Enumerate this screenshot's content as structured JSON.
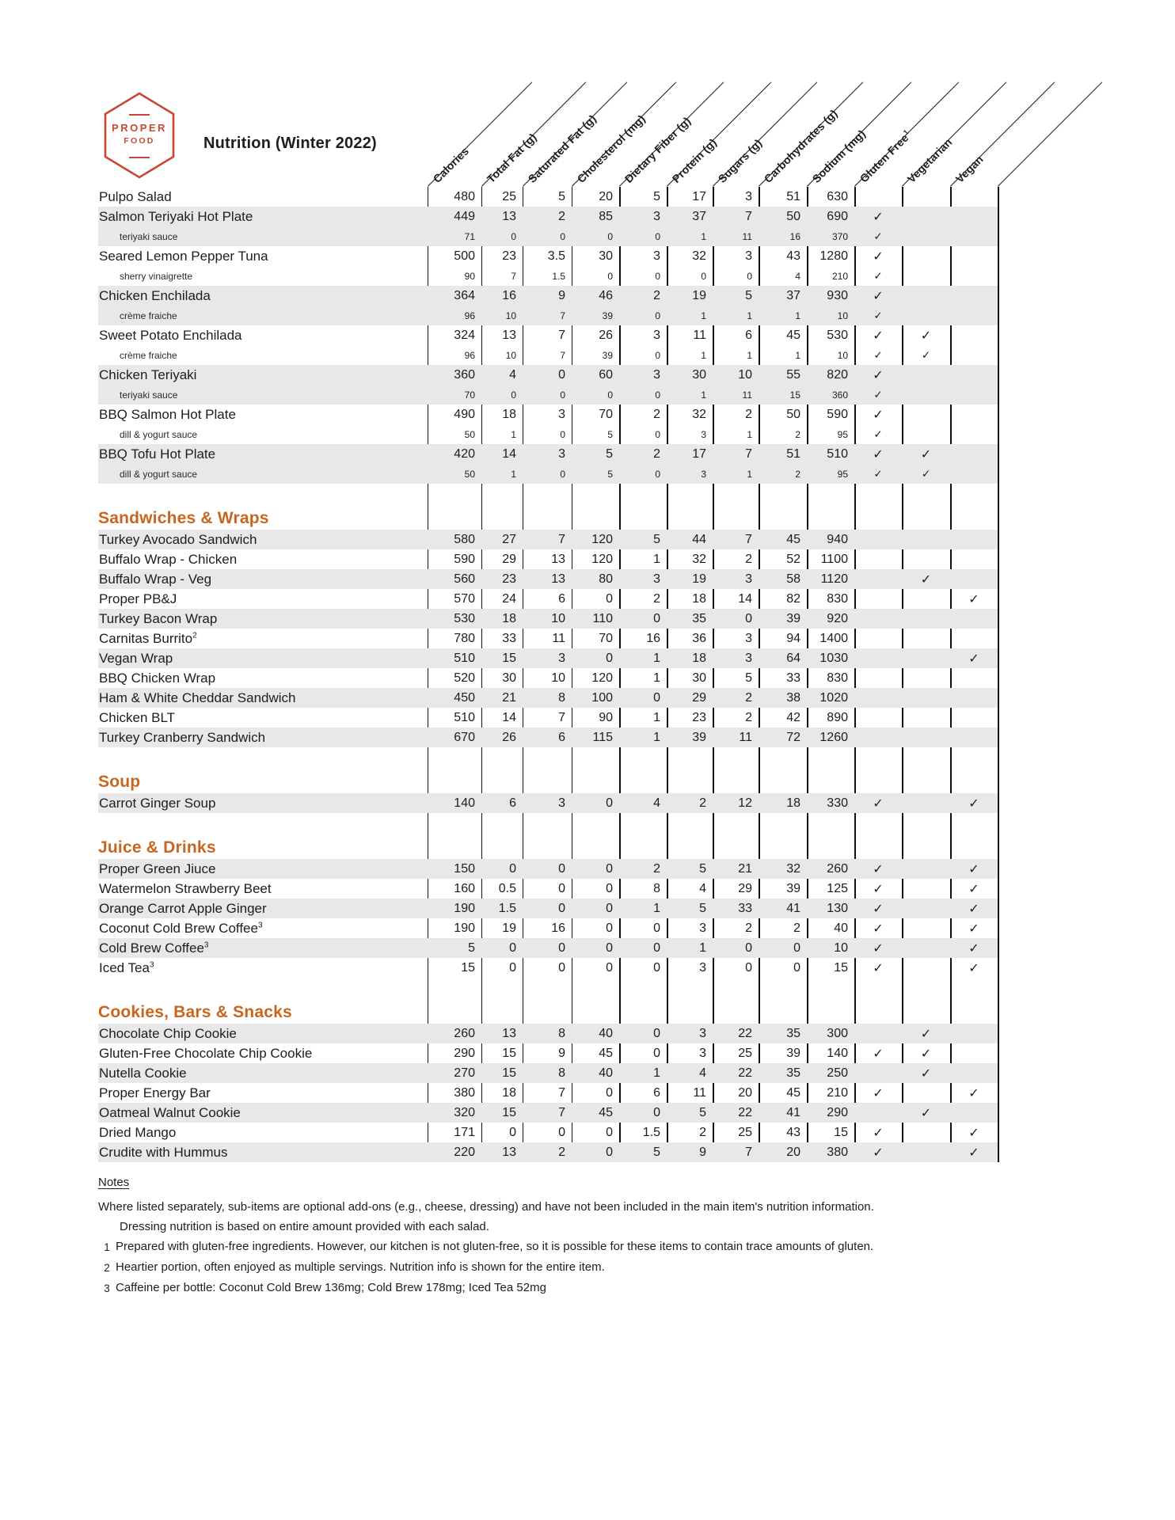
{
  "brand": {
    "logo_top": "PROPER",
    "logo_bottom": "FOOD",
    "title": "Nutrition (Winter 2022)"
  },
  "colors": {
    "accent_orange": "#c8661f",
    "logo_red": "#c54a31",
    "row_shade": "#e8e8e8",
    "line_color": "#111111"
  },
  "check_glyph": "✓",
  "columns": [
    {
      "label": "Calories"
    },
    {
      "label": "Total Fat (g)"
    },
    {
      "label": "Saturated Fat (g)"
    },
    {
      "label": "Cholesterol (mg)"
    },
    {
      "label": "Dietary Fiber (g)"
    },
    {
      "label": "Protein (g)"
    },
    {
      "label": "Sugars (g)"
    },
    {
      "label": "Carbohydrates (g)"
    },
    {
      "label": "Sodium (mg)"
    },
    {
      "label": "Gluten Free",
      "sup": "1"
    },
    {
      "label": "Vegetarian"
    },
    {
      "label": "Vegan"
    }
  ],
  "sections": [
    {
      "title": "",
      "rows": [
        {
          "name": "Pulpo Salad",
          "values": [
            "480",
            "25",
            "5",
            "20",
            "5",
            "17",
            "3",
            "51",
            "630"
          ],
          "checks": [
            0,
            0,
            0
          ],
          "shade": 0
        },
        {
          "name": "Salmon Teriyaki Hot Plate",
          "values": [
            "449",
            "13",
            "2",
            "85",
            "3",
            "37",
            "7",
            "50",
            "690"
          ],
          "checks": [
            1,
            0,
            0
          ],
          "shade": 1
        },
        {
          "name": "teriyaki sauce",
          "sub": true,
          "values": [
            "71",
            "0",
            "0",
            "0",
            "0",
            "1",
            "11",
            "16",
            "370"
          ],
          "checks": [
            1,
            0,
            0
          ],
          "shade": 1
        },
        {
          "name": "Seared Lemon Pepper Tuna",
          "values": [
            "500",
            "23",
            "3.5",
            "30",
            "3",
            "32",
            "3",
            "43",
            "1280"
          ],
          "checks": [
            1,
            0,
            0
          ],
          "shade": 0
        },
        {
          "name": "sherry vinaigrette",
          "sub": true,
          "values": [
            "90",
            "7",
            "1.5",
            "0",
            "0",
            "0",
            "0",
            "4",
            "210"
          ],
          "checks": [
            1,
            0,
            0
          ],
          "shade": 0
        },
        {
          "name": "Chicken Enchilada",
          "values": [
            "364",
            "16",
            "9",
            "46",
            "2",
            "19",
            "5",
            "37",
            "930"
          ],
          "checks": [
            1,
            0,
            0
          ],
          "shade": 1
        },
        {
          "name": "crème fraiche",
          "sub": true,
          "values": [
            "96",
            "10",
            "7",
            "39",
            "0",
            "1",
            "1",
            "1",
            "10"
          ],
          "checks": [
            1,
            0,
            0
          ],
          "shade": 1
        },
        {
          "name": "Sweet Potato Enchilada",
          "values": [
            "324",
            "13",
            "7",
            "26",
            "3",
            "11",
            "6",
            "45",
            "530"
          ],
          "checks": [
            1,
            1,
            0
          ],
          "shade": 0
        },
        {
          "name": "crème fraiche",
          "sub": true,
          "values": [
            "96",
            "10",
            "7",
            "39",
            "0",
            "1",
            "1",
            "1",
            "10"
          ],
          "checks": [
            1,
            1,
            0
          ],
          "shade": 0
        },
        {
          "name": "Chicken Teriyaki",
          "values": [
            "360",
            "4",
            "0",
            "60",
            "3",
            "30",
            "10",
            "55",
            "820"
          ],
          "checks": [
            1,
            0,
            0
          ],
          "shade": 1
        },
        {
          "name": "teriyaki sauce",
          "sub": true,
          "values": [
            "70",
            "0",
            "0",
            "0",
            "0",
            "1",
            "11",
            "15",
            "360"
          ],
          "checks": [
            1,
            0,
            0
          ],
          "shade": 1
        },
        {
          "name": "BBQ Salmon Hot Plate",
          "values": [
            "490",
            "18",
            "3",
            "70",
            "2",
            "32",
            "2",
            "50",
            "590"
          ],
          "checks": [
            1,
            0,
            0
          ],
          "shade": 0
        },
        {
          "name": "dill & yogurt sauce",
          "sub": true,
          "values": [
            "50",
            "1",
            "0",
            "5",
            "0",
            "3",
            "1",
            "2",
            "95"
          ],
          "checks": [
            1,
            0,
            0
          ],
          "shade": 0
        },
        {
          "name": "BBQ Tofu Hot Plate",
          "values": [
            "420",
            "14",
            "3",
            "5",
            "2",
            "17",
            "7",
            "51",
            "510"
          ],
          "checks": [
            1,
            1,
            0
          ],
          "shade": 1
        },
        {
          "name": "dill & yogurt sauce",
          "sub": true,
          "values": [
            "50",
            "1",
            "0",
            "5",
            "0",
            "3",
            "1",
            "2",
            "95"
          ],
          "checks": [
            1,
            1,
            0
          ],
          "shade": 1
        }
      ]
    },
    {
      "title": "Sandwiches & Wraps",
      "rows": [
        {
          "name": "Turkey Avocado Sandwich",
          "values": [
            "580",
            "27",
            "7",
            "120",
            "5",
            "44",
            "7",
            "45",
            "940"
          ],
          "checks": [
            0,
            0,
            0
          ],
          "shade": 1
        },
        {
          "name": "Buffalo Wrap - Chicken",
          "values": [
            "590",
            "29",
            "13",
            "120",
            "1",
            "32",
            "2",
            "52",
            "1100"
          ],
          "checks": [
            0,
            0,
            0
          ],
          "shade": 0
        },
        {
          "name": "Buffalo Wrap - Veg",
          "values": [
            "560",
            "23",
            "13",
            "80",
            "3",
            "19",
            "3",
            "58",
            "1120"
          ],
          "checks": [
            0,
            1,
            0
          ],
          "shade": 1
        },
        {
          "name": "Proper PB&J",
          "values": [
            "570",
            "24",
            "6",
            "0",
            "2",
            "18",
            "14",
            "82",
            "830"
          ],
          "checks": [
            0,
            0,
            1
          ],
          "shade": 0
        },
        {
          "name": "Turkey Bacon Wrap",
          "values": [
            "530",
            "18",
            "10",
            "110",
            "0",
            "35",
            "0",
            "39",
            "920"
          ],
          "checks": [
            0,
            0,
            0
          ],
          "shade": 1
        },
        {
          "name": "Carnitas Burrito",
          "sup": "2",
          "values": [
            "780",
            "33",
            "11",
            "70",
            "16",
            "36",
            "3",
            "94",
            "1400"
          ],
          "checks": [
            0,
            0,
            0
          ],
          "shade": 0
        },
        {
          "name": "Vegan Wrap",
          "values": [
            "510",
            "15",
            "3",
            "0",
            "1",
            "18",
            "3",
            "64",
            "1030"
          ],
          "checks": [
            0,
            0,
            1
          ],
          "shade": 1
        },
        {
          "name": "BBQ Chicken Wrap",
          "values": [
            "520",
            "30",
            "10",
            "120",
            "1",
            "30",
            "5",
            "33",
            "830"
          ],
          "checks": [
            0,
            0,
            0
          ],
          "shade": 0
        },
        {
          "name": "Ham & White Cheddar Sandwich",
          "values": [
            "450",
            "21",
            "8",
            "100",
            "0",
            "29",
            "2",
            "38",
            "1020"
          ],
          "checks": [
            0,
            0,
            0
          ],
          "shade": 1
        },
        {
          "name": "Chicken BLT",
          "values": [
            "510",
            "14",
            "7",
            "90",
            "1",
            "23",
            "2",
            "42",
            "890"
          ],
          "checks": [
            0,
            0,
            0
          ],
          "shade": 0
        },
        {
          "name": "Turkey Cranberry Sandwich",
          "values": [
            "670",
            "26",
            "6",
            "115",
            "1",
            "39",
            "11",
            "72",
            "1260"
          ],
          "checks": [
            0,
            0,
            0
          ],
          "shade": 1
        }
      ]
    },
    {
      "title": "Soup",
      "rows": [
        {
          "name": "Carrot Ginger Soup",
          "values": [
            "140",
            "6",
            "3",
            "0",
            "4",
            "2",
            "12",
            "18",
            "330"
          ],
          "checks": [
            1,
            0,
            1
          ],
          "shade": 1
        }
      ]
    },
    {
      "title": "Juice & Drinks",
      "rows": [
        {
          "name": "Proper Green Jiuce",
          "values": [
            "150",
            "0",
            "0",
            "0",
            "2",
            "5",
            "21",
            "32",
            "260"
          ],
          "checks": [
            1,
            0,
            1
          ],
          "shade": 1
        },
        {
          "name": "Watermelon Strawberry Beet",
          "values": [
            "160",
            "0.5",
            "0",
            "0",
            "8",
            "4",
            "29",
            "39",
            "125"
          ],
          "checks": [
            1,
            0,
            1
          ],
          "shade": 0
        },
        {
          "name": "Orange Carrot Apple Ginger",
          "values": [
            "190",
            "1.5",
            "0",
            "0",
            "1",
            "5",
            "33",
            "41",
            "130"
          ],
          "checks": [
            1,
            0,
            1
          ],
          "shade": 1
        },
        {
          "name": "Coconut Cold Brew Coffee",
          "sup": "3",
          "values": [
            "190",
            "19",
            "16",
            "0",
            "0",
            "3",
            "2",
            "2",
            "40"
          ],
          "checks": [
            1,
            0,
            1
          ],
          "shade": 0
        },
        {
          "name": "Cold Brew Coffee",
          "sup": "3",
          "values": [
            "5",
            "0",
            "0",
            "0",
            "0",
            "1",
            "0",
            "0",
            "10"
          ],
          "checks": [
            1,
            0,
            1
          ],
          "shade": 1
        },
        {
          "name": "Iced Tea",
          "sup": "3",
          "values": [
            "15",
            "0",
            "0",
            "0",
            "0",
            "3",
            "0",
            "0",
            "15"
          ],
          "checks": [
            1,
            0,
            1
          ],
          "shade": 0
        }
      ]
    },
    {
      "title": "Cookies, Bars & Snacks",
      "rows": [
        {
          "name": "Chocolate Chip Cookie",
          "values": [
            "260",
            "13",
            "8",
            "40",
            "0",
            "3",
            "22",
            "35",
            "300"
          ],
          "checks": [
            0,
            1,
            0
          ],
          "shade": 1
        },
        {
          "name": "Gluten-Free Chocolate Chip Cookie",
          "values": [
            "290",
            "15",
            "9",
            "45",
            "0",
            "3",
            "25",
            "39",
            "140"
          ],
          "checks": [
            1,
            1,
            0
          ],
          "shade": 0
        },
        {
          "name": "Nutella Cookie",
          "values": [
            "270",
            "15",
            "8",
            "40",
            "1",
            "4",
            "22",
            "35",
            "250"
          ],
          "checks": [
            0,
            1,
            0
          ],
          "shade": 1
        },
        {
          "name": "Proper Energy Bar",
          "values": [
            "380",
            "18",
            "7",
            "0",
            "6",
            "11",
            "20",
            "45",
            "210"
          ],
          "checks": [
            1,
            0,
            1
          ],
          "shade": 0
        },
        {
          "name": "Oatmeal Walnut Cookie",
          "values": [
            "320",
            "15",
            "7",
            "45",
            "0",
            "5",
            "22",
            "41",
            "290"
          ],
          "checks": [
            0,
            1,
            0
          ],
          "shade": 1
        },
        {
          "name": "Dried Mango",
          "values": [
            "171",
            "0",
            "0",
            "0",
            "1.5",
            "2",
            "25",
            "43",
            "15"
          ],
          "checks": [
            1,
            0,
            1
          ],
          "shade": 0
        },
        {
          "name": "Crudite with Hummus",
          "values": [
            "220",
            "13",
            "2",
            "0",
            "5",
            "9",
            "7",
            "20",
            "380"
          ],
          "checks": [
            1,
            0,
            1
          ],
          "shade": 1
        }
      ]
    }
  ],
  "notes": {
    "heading": "Notes",
    "lines": [
      {
        "num": "",
        "indent": false,
        "text": "Where listed separately, sub-items are optional add-ons (e.g., cheese, dressing) and have not been included in the main item's nutrition information."
      },
      {
        "num": "",
        "indent": true,
        "text": "Dressing nutrition is based on entire amount provided with each salad."
      },
      {
        "num": "1",
        "indent": false,
        "text": "Prepared with gluten-free ingredients. However, our kitchen is not gluten-free, so it is possible for these items to contain trace amounts of gluten."
      },
      {
        "num": "2",
        "indent": false,
        "text": "Heartier portion, often enjoyed as multiple servings. Nutrition info is shown for the entire item."
      },
      {
        "num": "3",
        "indent": false,
        "text": "Caffeine per bottle:  Coconut Cold Brew 136mg; Cold Brew 178mg; Iced Tea 52mg"
      }
    ]
  }
}
